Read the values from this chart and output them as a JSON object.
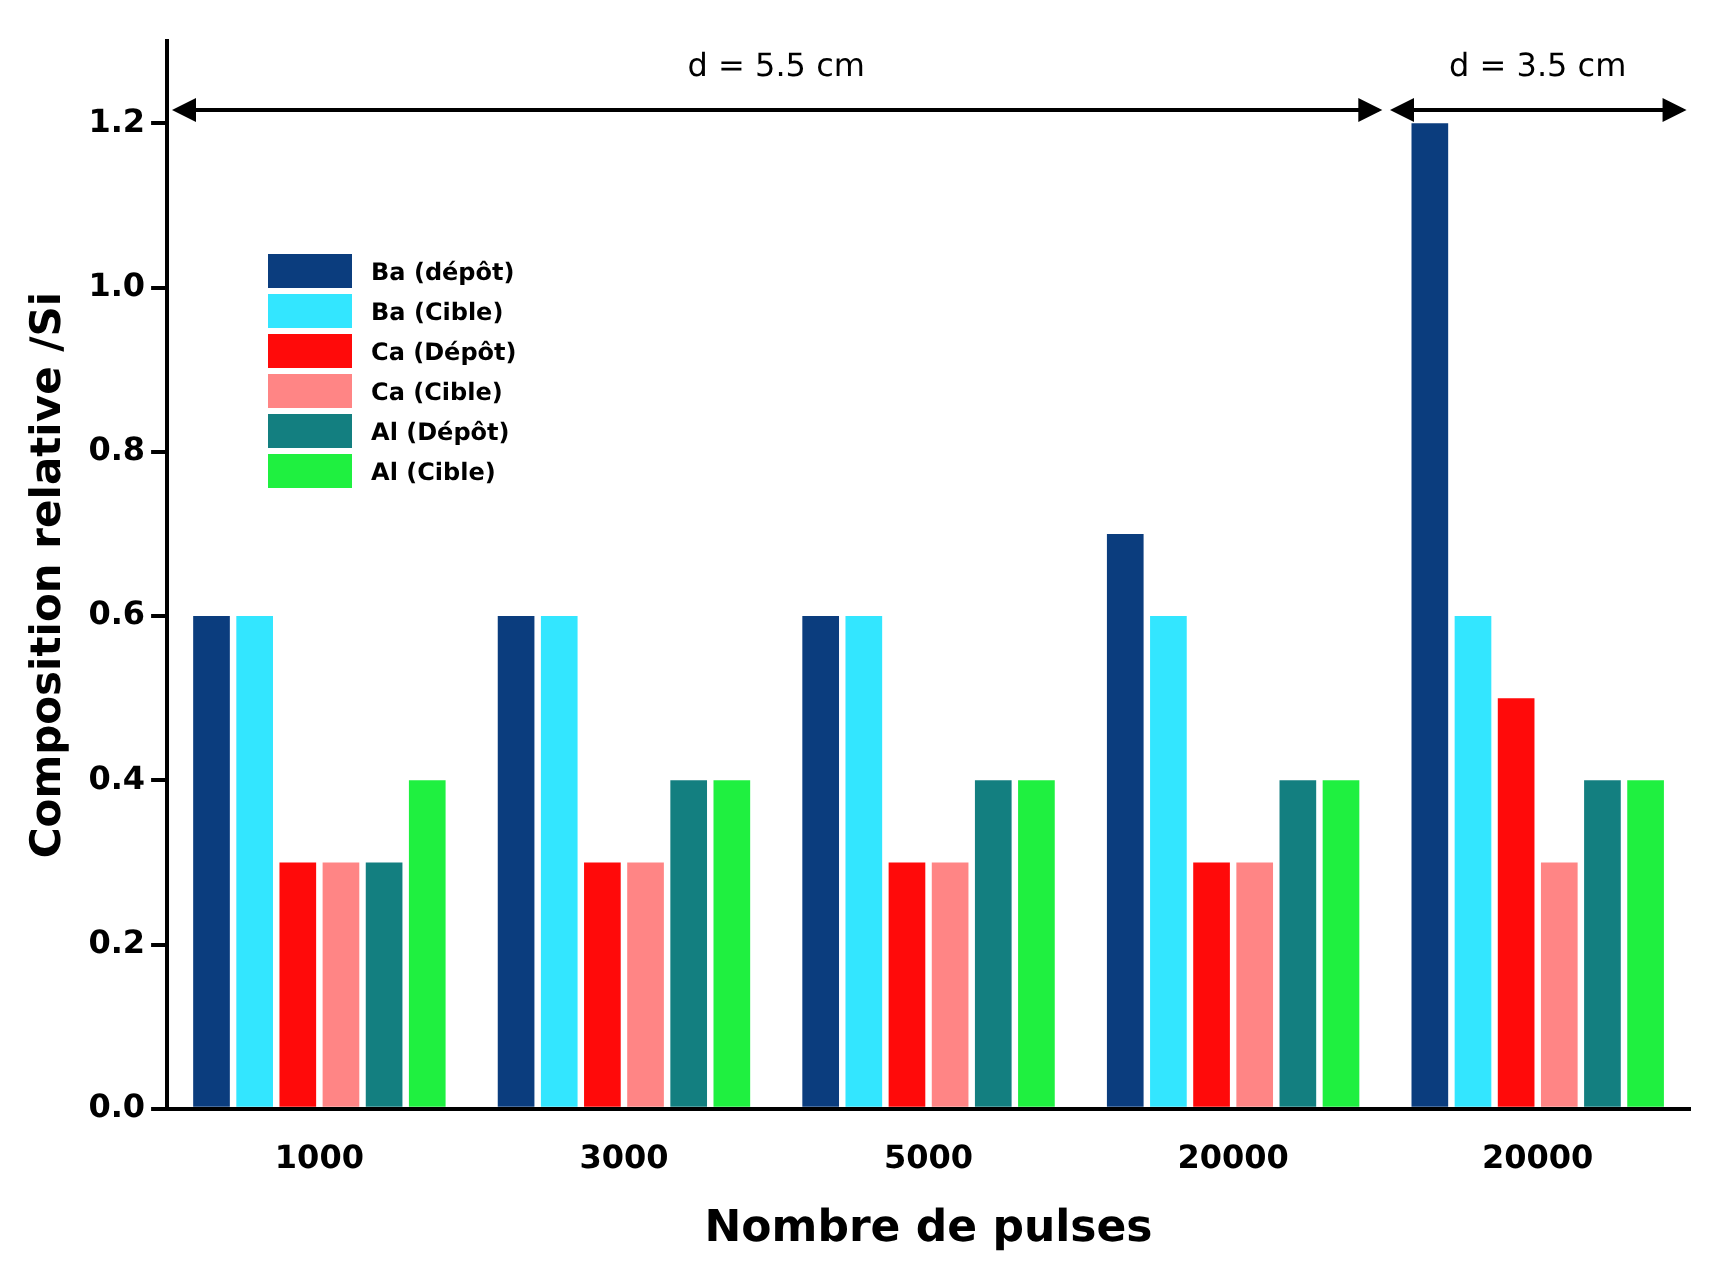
{
  "chart_data": {
    "type": "bar",
    "xlabel": "Nombre de pulses",
    "ylabel": "Composition relative /Si",
    "categories": [
      "1000",
      "3000",
      "5000",
      "20000",
      "20000"
    ],
    "series": [
      {
        "name": "Ba (dépôt)",
        "color": "#0b3d7e",
        "values": [
          0.6,
          0.6,
          0.6,
          0.7,
          1.2
        ]
      },
      {
        "name": "Ba (Cible)",
        "color": "#33e6ff",
        "values": [
          0.6,
          0.6,
          0.6,
          0.6,
          0.6
        ]
      },
      {
        "name": "Ca (Dépôt)",
        "color": "#ff0a0a",
        "values": [
          0.3,
          0.3,
          0.3,
          0.3,
          0.5
        ]
      },
      {
        "name": "Ca (Cible)",
        "color": "#ff8585",
        "values": [
          0.3,
          0.3,
          0.3,
          0.3,
          0.3
        ]
      },
      {
        "name": "Al (Dépôt)",
        "color": "#137f80",
        "values": [
          0.3,
          0.4,
          0.4,
          0.4,
          0.4
        ]
      },
      {
        "name": "Al (Cible)",
        "color": "#1ff040",
        "values": [
          0.4,
          0.4,
          0.4,
          0.4,
          0.4
        ]
      }
    ],
    "ylim": [
      0,
      1.3
    ],
    "yticks": [
      {
        "value": 0,
        "label": "0.0"
      },
      {
        "value": 0.2,
        "label": "0.2"
      },
      {
        "value": 0.4,
        "label": "0.4"
      },
      {
        "value": 0.6,
        "label": "0.6"
      },
      {
        "value": 0.8,
        "label": "0.8"
      },
      {
        "value": 1,
        "label": "1.0"
      },
      {
        "value": 1.2,
        "label": "1.2"
      }
    ],
    "annotations": [
      "d = 5.5 cm",
      "d = 3.5 cm"
    ],
    "grid": false,
    "legend": "top left"
  }
}
